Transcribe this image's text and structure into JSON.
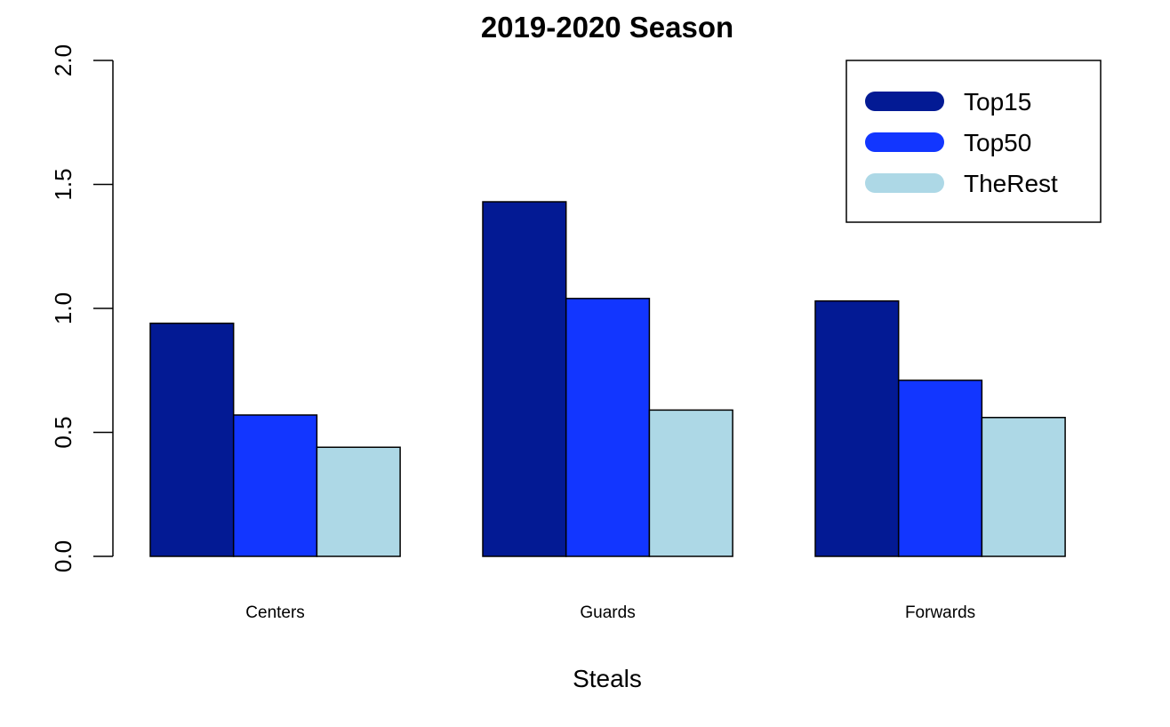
{
  "chart_data": {
    "type": "bar",
    "title": "2019-2020 Season",
    "xlabel": "Steals",
    "ylabel": "",
    "categories": [
      "Centers",
      "Guards",
      "Forwards"
    ],
    "series": [
      {
        "name": "Top15",
        "color": "#031A94",
        "values": [
          0.94,
          1.43,
          1.03
        ]
      },
      {
        "name": "Top50",
        "color": "#1236FF",
        "values": [
          0.57,
          1.04,
          0.71
        ]
      },
      {
        "name": "TheRest",
        "color": "#ADD8E6",
        "values": [
          0.44,
          0.59,
          0.56
        ]
      }
    ],
    "ylim": [
      0,
      2.0
    ],
    "yticks": [
      "0.0",
      "0.5",
      "1.0",
      "1.5",
      "2.0"
    ],
    "grid": false,
    "legend_position": "top-right"
  }
}
